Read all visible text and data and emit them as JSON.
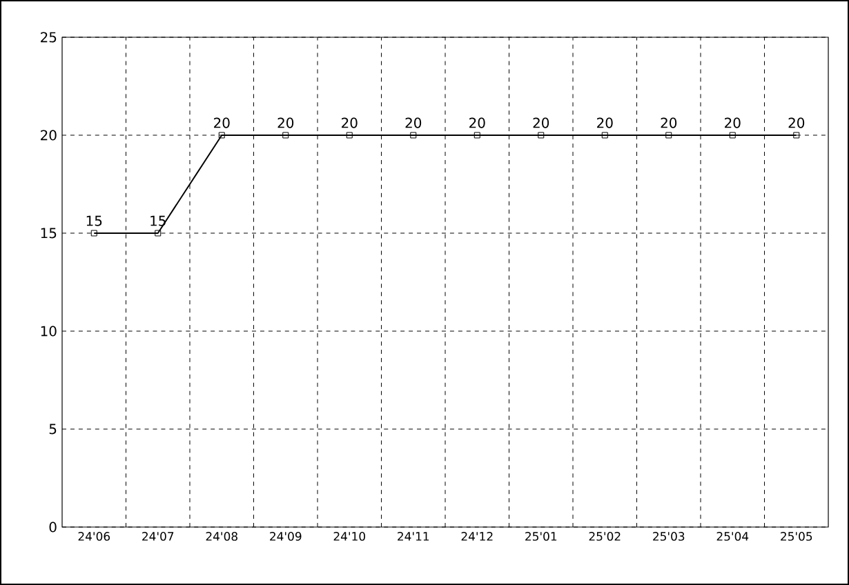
{
  "chart_data": {
    "type": "line",
    "categories": [
      "24'06",
      "24'07",
      "24'08",
      "24'09",
      "24'10",
      "24'11",
      "24'12",
      "25'01",
      "25'02",
      "25'03",
      "25'04",
      "25'05"
    ],
    "series": [
      {
        "color": "#000000",
        "values": [
          15,
          15,
          20,
          20,
          20,
          20,
          20,
          20,
          20,
          20,
          20,
          20
        ]
      }
    ],
    "ylim": [
      0,
      25
    ],
    "yticks": [
      0,
      5,
      10,
      15,
      20,
      25
    ],
    "grid": true,
    "marker": "square",
    "line_style": "solid",
    "data_labels": true
  }
}
